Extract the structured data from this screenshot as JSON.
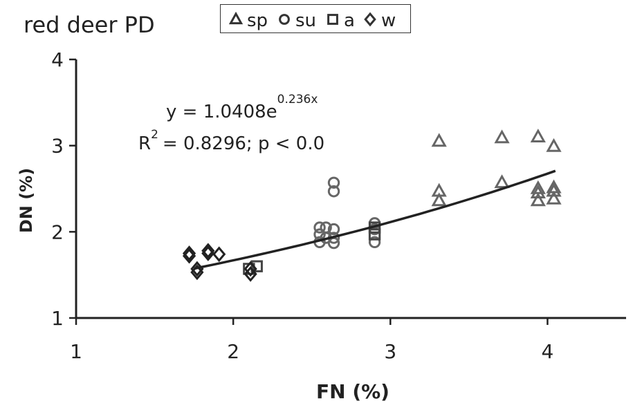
{
  "chart_data": {
    "type": "scatter",
    "title": "red deer PD",
    "xlabel": "FN (%)",
    "ylabel": "DN (%)",
    "xlim": [
      1,
      4.5
    ],
    "ylim": [
      1,
      4
    ],
    "xticks": [
      "1",
      "2",
      "3",
      "4"
    ],
    "yticks": [
      "1",
      "2",
      "3",
      "4"
    ],
    "grid": false,
    "legend_placement": "top",
    "series": [
      {
        "name": "sp",
        "marker": "triangle",
        "color": "#666666",
        "points": [
          [
            3.31,
            3.05
          ],
          [
            3.31,
            2.47
          ],
          [
            3.31,
            2.36
          ],
          [
            3.71,
            3.09
          ],
          [
            3.71,
            2.57
          ],
          [
            3.94,
            3.1
          ],
          [
            3.94,
            2.5
          ],
          [
            3.94,
            2.45
          ],
          [
            3.94,
            2.36
          ],
          [
            4.04,
            2.99
          ],
          [
            4.04,
            2.51
          ],
          [
            4.04,
            2.47
          ],
          [
            4.04,
            2.38
          ]
        ]
      },
      {
        "name": "su",
        "marker": "circle",
        "color": "#666666",
        "points": [
          [
            2.55,
            2.05
          ],
          [
            2.55,
            1.97
          ],
          [
            2.55,
            1.88
          ],
          [
            2.59,
            2.05
          ],
          [
            2.59,
            1.93
          ],
          [
            2.64,
            2.57
          ],
          [
            2.64,
            2.47
          ],
          [
            2.64,
            2.03
          ],
          [
            2.64,
            1.93
          ],
          [
            2.64,
            1.87
          ],
          [
            2.9,
            2.1
          ],
          [
            2.9,
            2.03
          ],
          [
            2.9,
            1.88
          ]
        ]
      },
      {
        "name": "a",
        "marker": "square",
        "color": "#444444",
        "points": [
          [
            2.1,
            1.57
          ],
          [
            2.15,
            1.6
          ],
          [
            2.9,
            1.97
          ],
          [
            2.9,
            2.05
          ]
        ]
      },
      {
        "name": "w",
        "marker": "diamond",
        "color": "#222222",
        "points": [
          [
            1.72,
            1.75
          ],
          [
            1.72,
            1.72
          ],
          [
            1.77,
            1.57
          ],
          [
            1.77,
            1.53
          ],
          [
            1.84,
            1.78
          ],
          [
            1.84,
            1.75
          ],
          [
            1.91,
            1.74
          ],
          [
            2.11,
            1.51
          ],
          [
            2.11,
            1.57
          ]
        ]
      }
    ],
    "trendline": {
      "type": "exponential",
      "a": 1.0408,
      "b": 0.236,
      "x_range": [
        1.75,
        4.05
      ],
      "equation_label": "y = 1.0408e",
      "equation_exponent": "0.236x",
      "r2_prefix": "R",
      "r2_superscript": "2",
      "r2_label": "= 0.8296; p < 0.0"
    }
  }
}
